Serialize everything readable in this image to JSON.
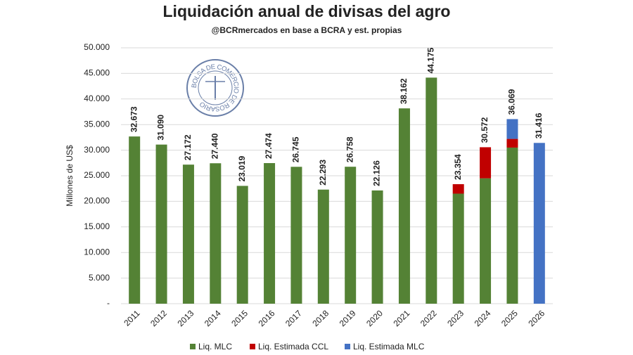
{
  "chart_data": {
    "type": "stacked_bar",
    "title": "Liquidación anual de divisas del agro",
    "subtitle": "@BCRmercados  en base a BCRA y est. propias",
    "ylabel": "Millones de US$",
    "logo_text": "BOLSA DE COMERCIO DE ROSARIO",
    "categories": [
      "2011",
      "2012",
      "2013",
      "2014",
      "2015",
      "2016",
      "2017",
      "2018",
      "2019",
      "2020",
      "2021",
      "2022",
      "2023",
      "2024",
      "2025",
      "2026"
    ],
    "series": [
      {
        "name": "Liq. MLC",
        "color": "#548235",
        "values": [
          32673,
          31090,
          27172,
          27440,
          23019,
          27474,
          26745,
          22293,
          26758,
          22126,
          38162,
          44175,
          21500,
          24500,
          30500,
          null
        ]
      },
      {
        "name": "Liq. Estimada CCL",
        "color": "#c00000",
        "values": [
          null,
          null,
          null,
          null,
          null,
          null,
          null,
          null,
          null,
          null,
          null,
          null,
          1854,
          6072,
          1700,
          null
        ]
      },
      {
        "name": "Liq. Estimada MLC",
        "color": "#4472c4",
        "values": [
          null,
          null,
          null,
          null,
          null,
          null,
          null,
          null,
          null,
          null,
          null,
          null,
          null,
          null,
          3869,
          31416
        ]
      }
    ],
    "totals": [
      {
        "value": 32673,
        "label": "32.673"
      },
      {
        "value": 31090,
        "label": "31.090"
      },
      {
        "value": 27172,
        "label": "27.172"
      },
      {
        "value": 27440,
        "label": "27.440"
      },
      {
        "value": 23019,
        "label": "23.019"
      },
      {
        "value": 27474,
        "label": "27.474"
      },
      {
        "value": 26745,
        "label": "26.745"
      },
      {
        "value": 22293,
        "label": "22.293"
      },
      {
        "value": 26758,
        "label": "26.758"
      },
      {
        "value": 22126,
        "label": "22.126"
      },
      {
        "value": 38162,
        "label": "38.162"
      },
      {
        "value": 44175,
        "label": "44.175"
      },
      {
        "value": 23354,
        "label": "23.354"
      },
      {
        "value": 30572,
        "label": "30.572"
      },
      {
        "value": 36069,
        "label": "36.069"
      },
      {
        "value": 31416,
        "label": "31.416"
      }
    ],
    "ylim": [
      0,
      50000
    ],
    "yticks": [
      {
        "value": 0,
        "label": "-"
      },
      {
        "value": 5000,
        "label": "5.000"
      },
      {
        "value": 10000,
        "label": "10.000"
      },
      {
        "value": 15000,
        "label": "15.000"
      },
      {
        "value": 20000,
        "label": "20.000"
      },
      {
        "value": 25000,
        "label": "25.000"
      },
      {
        "value": 30000,
        "label": "30.000"
      },
      {
        "value": 35000,
        "label": "35.000"
      },
      {
        "value": 40000,
        "label": "40.000"
      },
      {
        "value": 45000,
        "label": "45.000"
      },
      {
        "value": 50000,
        "label": "50.000"
      }
    ],
    "grid": true,
    "legend": "bottom"
  }
}
